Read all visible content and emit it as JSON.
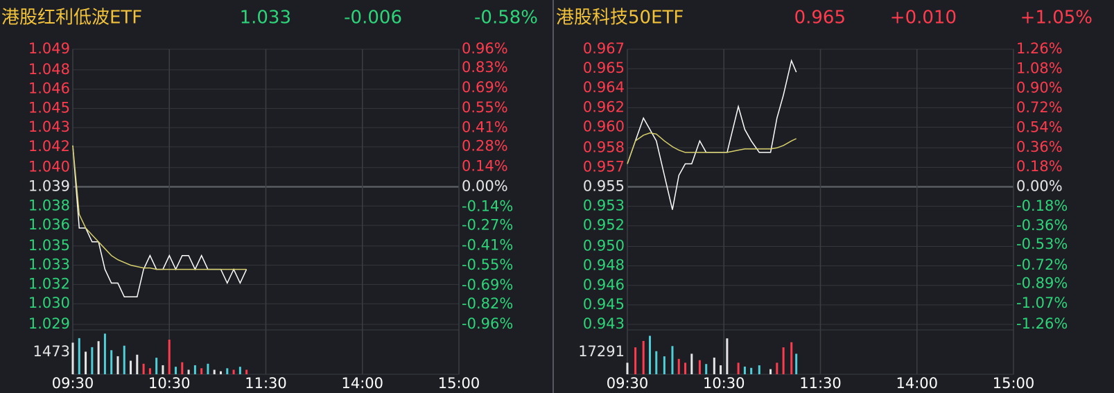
{
  "chart_data": [
    {
      "type": "line",
      "title": "港股红利低波ETF",
      "price": 1.033,
      "change": -0.006,
      "change_pct": {
        "value": -0.58,
        "label": "-0.58%"
      },
      "title_color": "#f2c23a",
      "up_color": "#ff3b4e",
      "down_color": "#2ed47a",
      "flat_color": "#e6e6e6",
      "xlim": [
        0,
        240
      ],
      "xticks": [
        {
          "value": 0,
          "label": "09:30"
        },
        {
          "value": 60,
          "label": "10:30"
        },
        {
          "value": 120,
          "label": "11:30"
        },
        {
          "value": 180,
          "label": "14:00"
        },
        {
          "value": 240,
          "label": "15:00"
        }
      ],
      "ylim": [
        1.029,
        1.049
      ],
      "yticks": [
        1.049,
        {
          "value": 1.0475,
          "label": "1.048"
        },
        {
          "value": 1.0461,
          "label": "1.046"
        },
        {
          "value": 1.0447,
          "label": "1.045"
        },
        {
          "value": 1.0433,
          "label": "1.043"
        },
        {
          "value": 1.0419,
          "label": "1.042"
        },
        {
          "value": 1.0404,
          "label": "1.040"
        },
        1.039,
        {
          "value": 1.0376,
          "label": "1.038"
        },
        {
          "value": 1.0362,
          "label": "1.036"
        },
        {
          "value": 1.0347,
          "label": "1.035"
        },
        {
          "value": 1.0333,
          "label": "1.033"
        },
        {
          "value": 1.0319,
          "label": "1.032"
        },
        {
          "value": 1.0305,
          "label": "1.030"
        },
        1.029
      ],
      "y2lim": [
        -0.96,
        0.96
      ],
      "y2ticks": [
        {
          "value": 0.96,
          "label": "0.96%"
        },
        {
          "value": 0.83,
          "label": "0.83%"
        },
        {
          "value": 0.69,
          "label": "0.69%"
        },
        {
          "value": 0.55,
          "label": "0.55%"
        },
        {
          "value": 0.41,
          "label": "0.41%"
        },
        {
          "value": 0.28,
          "label": "0.28%"
        },
        {
          "value": 0.14,
          "label": "0.14%"
        },
        {
          "value": 0,
          "label": "0.00%"
        },
        {
          "value": -0.14,
          "label": "-0.14%"
        },
        {
          "value": -0.27,
          "label": "-0.27%"
        },
        {
          "value": -0.41,
          "label": "-0.41%"
        },
        {
          "value": -0.55,
          "label": "-0.55%"
        },
        {
          "value": -0.69,
          "label": "-0.69%"
        },
        {
          "value": -0.82,
          "label": "-0.82%"
        },
        {
          "value": -0.96,
          "label": "-0.96%"
        }
      ],
      "x": [
        0,
        4,
        8,
        12,
        16,
        20,
        24,
        28,
        32,
        36,
        40,
        44,
        48,
        52,
        56,
        60,
        64,
        68,
        72,
        76,
        80,
        84,
        88,
        92,
        96,
        100,
        104,
        108
      ],
      "series": [
        {
          "color": "#ffffff",
          "values": [
            1.042,
            1.036,
            1.036,
            1.035,
            1.035,
            1.033,
            1.032,
            1.032,
            1.031,
            1.031,
            1.031,
            1.033,
            1.034,
            1.033,
            1.033,
            1.034,
            1.033,
            1.034,
            1.034,
            1.033,
            1.034,
            1.033,
            1.033,
            1.033,
            1.032,
            1.033,
            1.032,
            1.033
          ]
        },
        {
          "color": "#d6cf6c",
          "values": [
            1.042,
            1.037,
            1.036,
            1.0355,
            1.035,
            1.0345,
            1.034,
            1.0337,
            1.0335,
            1.0333,
            1.0332,
            1.0331,
            1.0331,
            1.033,
            1.033,
            1.033,
            1.033,
            1.033,
            1.033,
            1.033,
            1.033,
            1.033,
            1.033,
            1.033,
            1.033,
            1.033,
            1.033,
            1.033
          ]
        }
      ],
      "volume": {
        "ylim": [
          0,
          2946
        ],
        "yticks": [
          1473
        ],
        "values": [
          2100,
          2400,
          1500,
          1800,
          2200,
          2700,
          1600,
          1200,
          1900,
          900,
          1300,
          700,
          400,
          1100,
          600,
          2300,
          500,
          800,
          300,
          600,
          400,
          700,
          300,
          200,
          400,
          300,
          500,
          300
        ]
      }
    },
    {
      "type": "line",
      "title": "港股科技50ETF",
      "price": 0.965,
      "change": {
        "value": 0.01,
        "label": "+0.010"
      },
      "change_pct": {
        "value": 1.05,
        "label": "+1.05%"
      },
      "title_color": "#f2c23a",
      "up_color": "#ff3b4e",
      "down_color": "#2ed47a",
      "flat_color": "#e6e6e6",
      "xlim": [
        0,
        240
      ],
      "xticks": [
        {
          "value": 0,
          "label": "09:30"
        },
        {
          "value": 60,
          "label": "10:30"
        },
        {
          "value": 120,
          "label": "11:30"
        },
        {
          "value": 180,
          "label": "14:00"
        },
        {
          "value": 240,
          "label": "15:00"
        }
      ],
      "ylim": [
        0.943,
        0.967
      ],
      "yticks": [
        0.967,
        {
          "value": 0.9653,
          "label": "0.965"
        },
        {
          "value": 0.9636,
          "label": "0.964"
        },
        {
          "value": 0.9619,
          "label": "0.962"
        },
        {
          "value": 0.9602,
          "label": "0.960"
        },
        {
          "value": 0.9584,
          "label": "0.958"
        },
        {
          "value": 0.9567,
          "label": "0.957"
        },
        0.955,
        {
          "value": 0.9533,
          "label": "0.953"
        },
        {
          "value": 0.9516,
          "label": "0.952"
        },
        {
          "value": 0.9498,
          "label": "0.950"
        },
        {
          "value": 0.9481,
          "label": "0.948"
        },
        {
          "value": 0.9464,
          "label": "0.946"
        },
        {
          "value": 0.9447,
          "label": "0.945"
        },
        0.943
      ],
      "y2lim": [
        -1.26,
        1.26
      ],
      "y2ticks": [
        {
          "value": 1.26,
          "label": "1.26%"
        },
        {
          "value": 1.08,
          "label": "1.08%"
        },
        {
          "value": 0.9,
          "label": "0.90%"
        },
        {
          "value": 0.72,
          "label": "0.72%"
        },
        {
          "value": 0.54,
          "label": "0.54%"
        },
        {
          "value": 0.36,
          "label": "0.36%"
        },
        {
          "value": 0.18,
          "label": "0.18%"
        },
        {
          "value": 0,
          "label": "0.00%"
        },
        {
          "value": -0.18,
          "label": "-0.18%"
        },
        {
          "value": -0.36,
          "label": "-0.36%"
        },
        {
          "value": -0.53,
          "label": "-0.53%"
        },
        {
          "value": -0.72,
          "label": "-0.72%"
        },
        {
          "value": -0.89,
          "label": "-0.89%"
        },
        {
          "value": -1.07,
          "label": "-1.07%"
        },
        {
          "value": -1.26,
          "label": "-1.26%"
        }
      ],
      "x": [
        0,
        5,
        10,
        14,
        18,
        23,
        28,
        32,
        36,
        40,
        45,
        49,
        54,
        58,
        62,
        69,
        73,
        77,
        82,
        89,
        93,
        97,
        102,
        105
      ],
      "series": [
        {
          "color": "#ffffff",
          "values": [
            0.957,
            0.959,
            0.961,
            0.96,
            0.959,
            0.956,
            0.953,
            0.956,
            0.957,
            0.957,
            0.959,
            0.958,
            0.958,
            0.958,
            0.958,
            0.962,
            0.96,
            0.959,
            0.958,
            0.958,
            0.961,
            0.963,
            0.966,
            0.965
          ]
        },
        {
          "color": "#d6cf6c",
          "values": [
            0.957,
            0.959,
            0.9595,
            0.9597,
            0.9596,
            0.959,
            0.9585,
            0.9582,
            0.958,
            0.958,
            0.958,
            0.958,
            0.958,
            0.958,
            0.958,
            0.9582,
            0.9583,
            0.9583,
            0.9583,
            0.9583,
            0.9584,
            0.9586,
            0.959,
            0.9592
          ]
        }
      ],
      "volume": {
        "ylim": [
          0,
          34582
        ],
        "yticks": [
          17291
        ],
        "values": [
          9000,
          21000,
          26000,
          30000,
          18000,
          14000,
          22000,
          12000,
          9000,
          16000,
          11000,
          8000,
          13000,
          7000,
          28000,
          9000,
          6000,
          5000,
          7000,
          4000,
          9000,
          21000,
          25000,
          16000
        ]
      }
    }
  ]
}
